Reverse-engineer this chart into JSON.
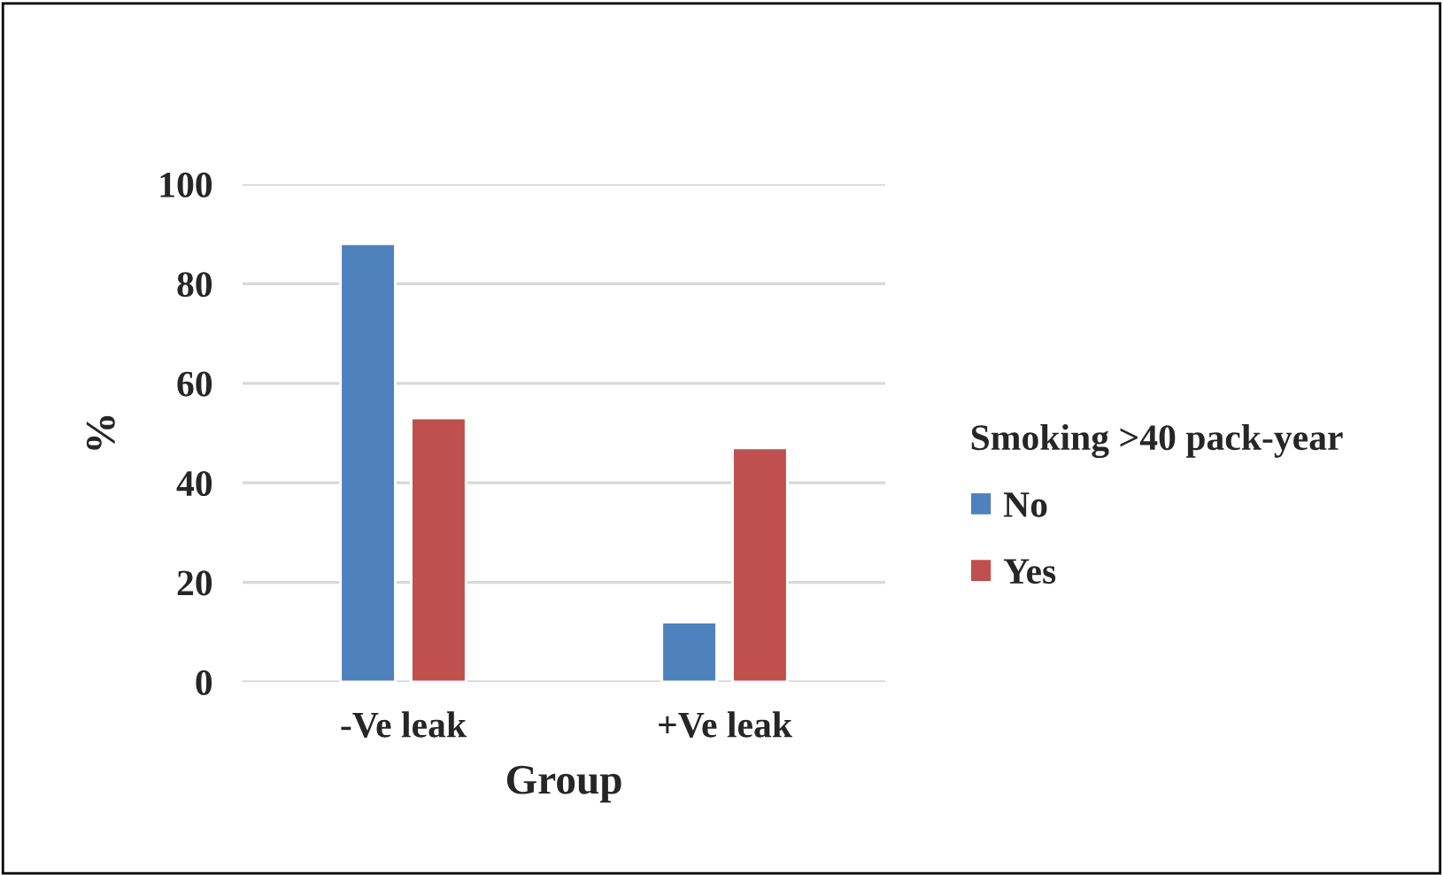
{
  "chart_data": {
    "type": "bar",
    "xlabel": "Group",
    "ylabel": "%",
    "legend_title": "Smoking >40 pack-year",
    "categories": [
      "-Ve leak",
      "+Ve leak"
    ],
    "series": [
      {
        "name": "No",
        "color": "#4f81bd",
        "values": [
          88,
          12
        ]
      },
      {
        "name": "Yes",
        "color": "#c0504d",
        "values": [
          53,
          47
        ]
      }
    ],
    "ylim": [
      0,
      100
    ],
    "yticks": [
      0,
      20,
      40,
      60,
      80,
      100
    ],
    "grid": "y",
    "legend": "right"
  }
}
